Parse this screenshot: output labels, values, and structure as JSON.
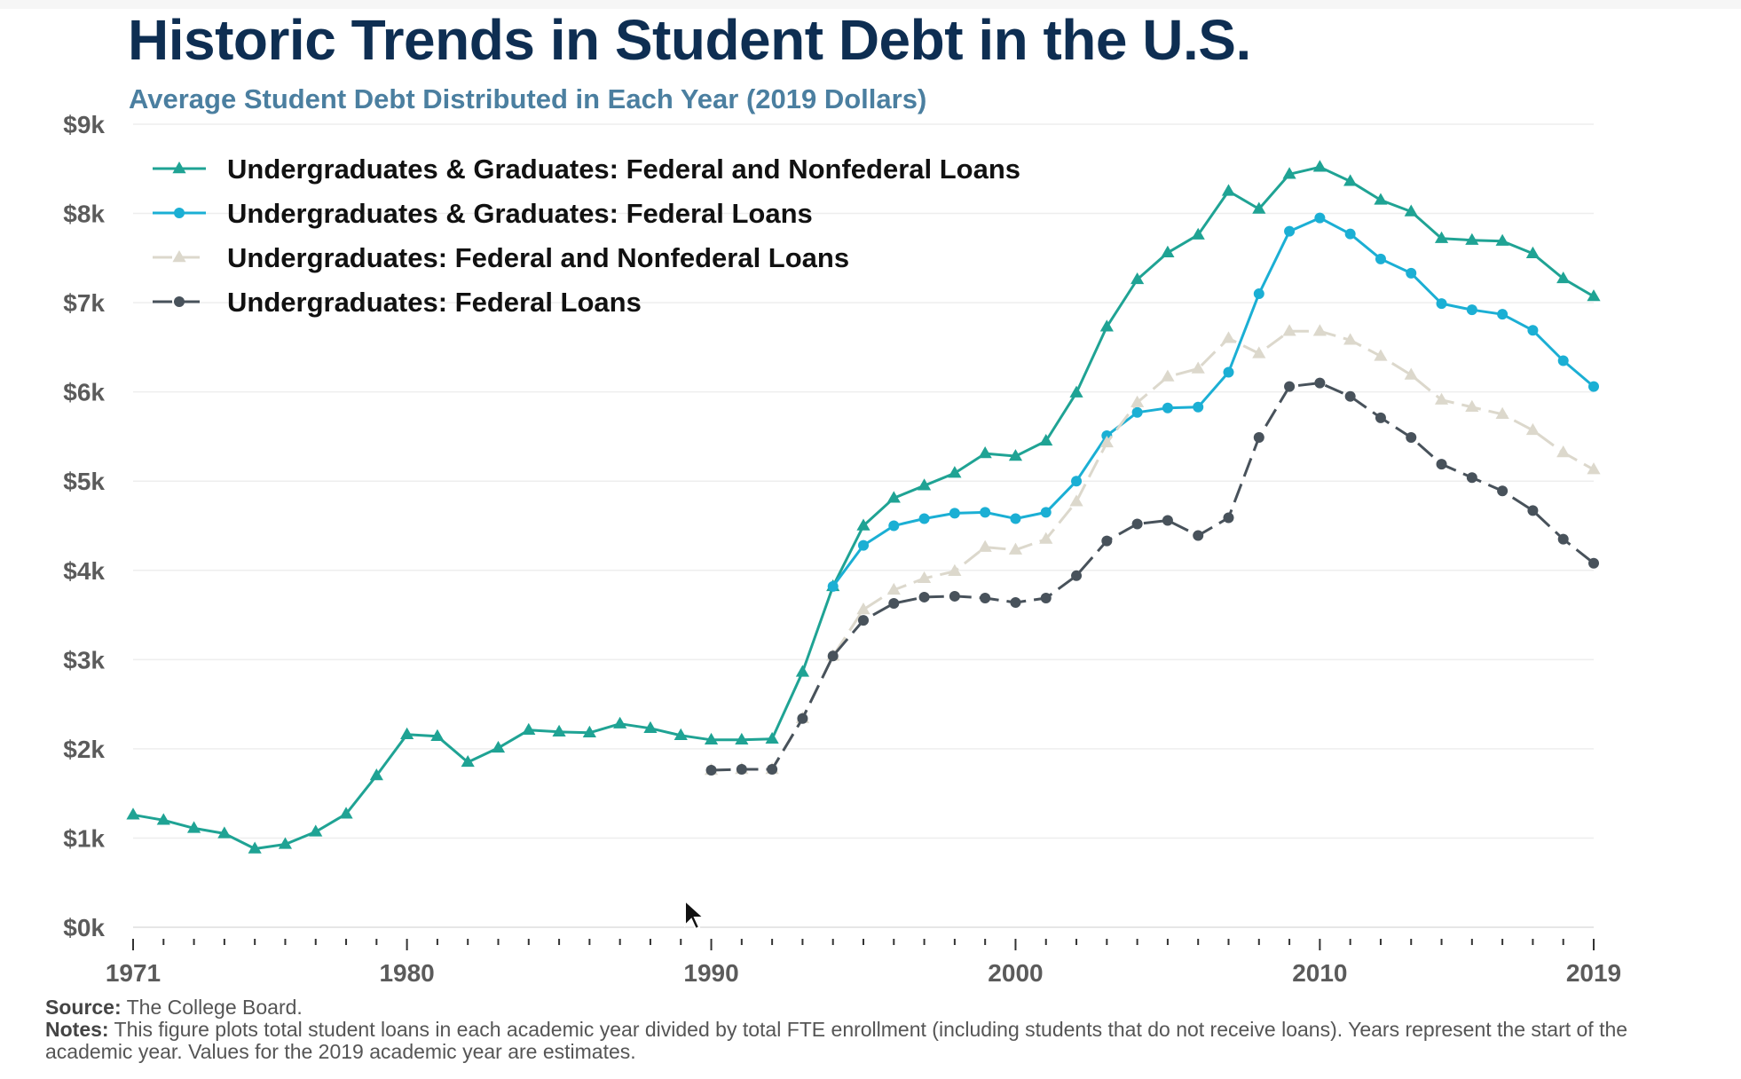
{
  "title": "Historic Trends in Student Debt in the U.S.",
  "subtitle": "Average Student Debt Distributed in Each Year (2019 Dollars)",
  "footer": {
    "source_label": "Source:",
    "source_text": "The College Board.",
    "notes_label": "Notes:",
    "notes_text": "This figure plots total student loans in each academic year divided by total FTE enrollment (including students that do not receive loans). Years represent the start of the academic year. Values for the 2019 academic year are estimates."
  },
  "chart_data": {
    "type": "line",
    "xlim": [
      1971,
      2019
    ],
    "ylim": [
      0,
      9000
    ],
    "x_ticks": [
      1971,
      1980,
      1990,
      2000,
      2010,
      2019
    ],
    "y_ticks": [
      0,
      1000,
      2000,
      3000,
      4000,
      5000,
      6000,
      7000,
      8000,
      9000
    ],
    "x_tick_labels": [
      "1971",
      "1980",
      "1990",
      "2000",
      "2010",
      "2019"
    ],
    "y_tick_labels": [
      "$0k",
      "$1k",
      "$2k",
      "$3k",
      "$4k",
      "$5k",
      "$6k",
      "$7k",
      "$8k",
      "$9k"
    ],
    "grid": "horizontal",
    "legend_position": "top-left",
    "series": [
      {
        "name": "Undergraduates & Graduates: Federal and Nonfederal Loans",
        "color": "#1fa394",
        "marker": "triangle",
        "dash": "solid",
        "x": [
          1971,
          1972,
          1973,
          1974,
          1975,
          1976,
          1977,
          1978,
          1979,
          1980,
          1981,
          1982,
          1983,
          1984,
          1985,
          1986,
          1987,
          1988,
          1989,
          1990,
          1991,
          1992,
          1993,
          1994,
          1995,
          1996,
          1997,
          1998,
          1999,
          2000,
          2001,
          2002,
          2003,
          2004,
          2005,
          2006,
          2007,
          2008,
          2009,
          2010,
          2011,
          2012,
          2013,
          2014,
          2015,
          2016,
          2017,
          2018,
          2019
        ],
        "values": [
          1260,
          1200,
          1110,
          1050,
          880,
          930,
          1070,
          1270,
          1700,
          2160,
          2140,
          1850,
          2010,
          2210,
          2190,
          2180,
          2280,
          2230,
          2150,
          2100,
          2100,
          2110,
          2860,
          3820,
          4500,
          4810,
          4950,
          5090,
          5310,
          5280,
          5450,
          5990,
          6730,
          7260,
          7560,
          7760,
          8250,
          8050,
          8440,
          8520,
          8360,
          8150,
          8020,
          7720,
          7700,
          7690,
          7550,
          7270,
          7070
        ]
      },
      {
        "name": "Undergraduates & Graduates: Federal Loans",
        "color": "#1bafd4",
        "marker": "circle",
        "dash": "solid",
        "x": [
          1994,
          1995,
          1996,
          1997,
          1998,
          1999,
          2000,
          2001,
          2002,
          2003,
          2004,
          2005,
          2006,
          2007,
          2008,
          2009,
          2010,
          2011,
          2012,
          2013,
          2014,
          2015,
          2016,
          2017,
          2018,
          2019
        ],
        "values": [
          3820,
          4280,
          4500,
          4580,
          4640,
          4650,
          4580,
          4650,
          5000,
          5510,
          5770,
          5820,
          5830,
          6220,
          7100,
          7800,
          7950,
          7770,
          7490,
          7330,
          6990,
          6920,
          6870,
          6690,
          6350,
          6060
        ]
      },
      {
        "name": "Undergraduates: Federal and Nonfederal Loans",
        "color": "#dcd8cc",
        "marker": "triangle",
        "dash": "dashed",
        "x": [
          1990,
          1991,
          1992,
          1993,
          1994,
          1995,
          1996,
          1997,
          1998,
          1999,
          2000,
          2001,
          2002,
          2003,
          2004,
          2005,
          2006,
          2007,
          2008,
          2009,
          2010,
          2011,
          2012,
          2013,
          2014,
          2015,
          2016,
          2017,
          2018,
          2019
        ],
        "values": [
          1760,
          1770,
          1770,
          2340,
          3040,
          3560,
          3780,
          3910,
          3990,
          4260,
          4230,
          4350,
          4770,
          5430,
          5880,
          6170,
          6260,
          6600,
          6430,
          6680,
          6680,
          6580,
          6400,
          6190,
          5910,
          5830,
          5750,
          5570,
          5320,
          5130
        ]
      },
      {
        "name": "Undergraduates: Federal Loans",
        "color": "#48525b",
        "marker": "circle",
        "dash": "dashed",
        "x": [
          1990,
          1991,
          1992,
          1993,
          1994,
          1995,
          1996,
          1997,
          1998,
          1999,
          2000,
          2001,
          2002,
          2003,
          2004,
          2005,
          2006,
          2007,
          2008,
          2009,
          2010,
          2011,
          2012,
          2013,
          2014,
          2015,
          2016,
          2017,
          2018,
          2019
        ],
        "values": [
          1760,
          1770,
          1770,
          2340,
          3040,
          3440,
          3630,
          3700,
          3710,
          3690,
          3640,
          3690,
          3940,
          4330,
          4520,
          4560,
          4390,
          4590,
          5490,
          6060,
          6100,
          5950,
          5710,
          5490,
          5190,
          5040,
          4890,
          4670,
          4350,
          4080
        ]
      }
    ]
  }
}
